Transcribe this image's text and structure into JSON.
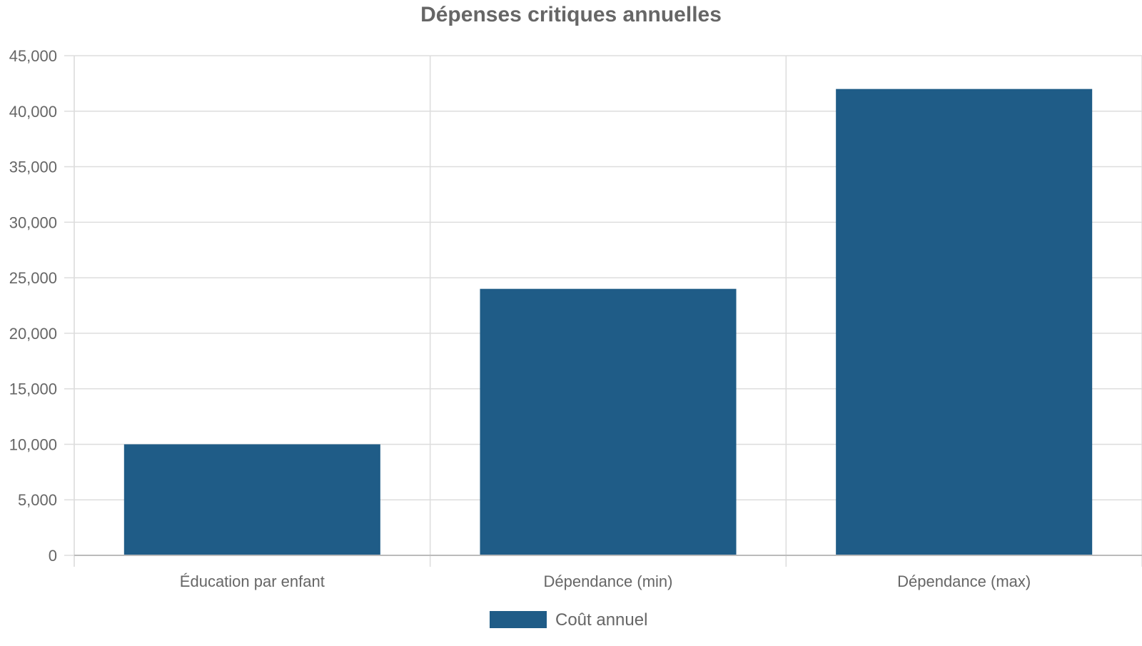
{
  "chart_data": {
    "type": "bar",
    "title": "Dépenses critiques annuelles",
    "xlabel": "",
    "ylabel": "",
    "categories": [
      "Éducation par enfant",
      "Dépendance (min)",
      "Dépendance (max)"
    ],
    "series": [
      {
        "name": "Coût annuel",
        "values": [
          10000,
          24000,
          42000
        ],
        "color": "#1f5c87"
      }
    ],
    "ylim": [
      0,
      45000
    ],
    "yticks": [
      0,
      5000,
      10000,
      15000,
      20000,
      25000,
      30000,
      35000,
      40000,
      45000
    ],
    "ytick_labels": [
      "0",
      "5,000",
      "10,000",
      "15,000",
      "20,000",
      "25,000",
      "30,000",
      "35,000",
      "40,000",
      "45,000"
    ],
    "grid": true,
    "legend": "bottom-center",
    "colors": {
      "text": "#666666",
      "grid": "#dddddd",
      "axis": "#bbbbbb"
    }
  }
}
